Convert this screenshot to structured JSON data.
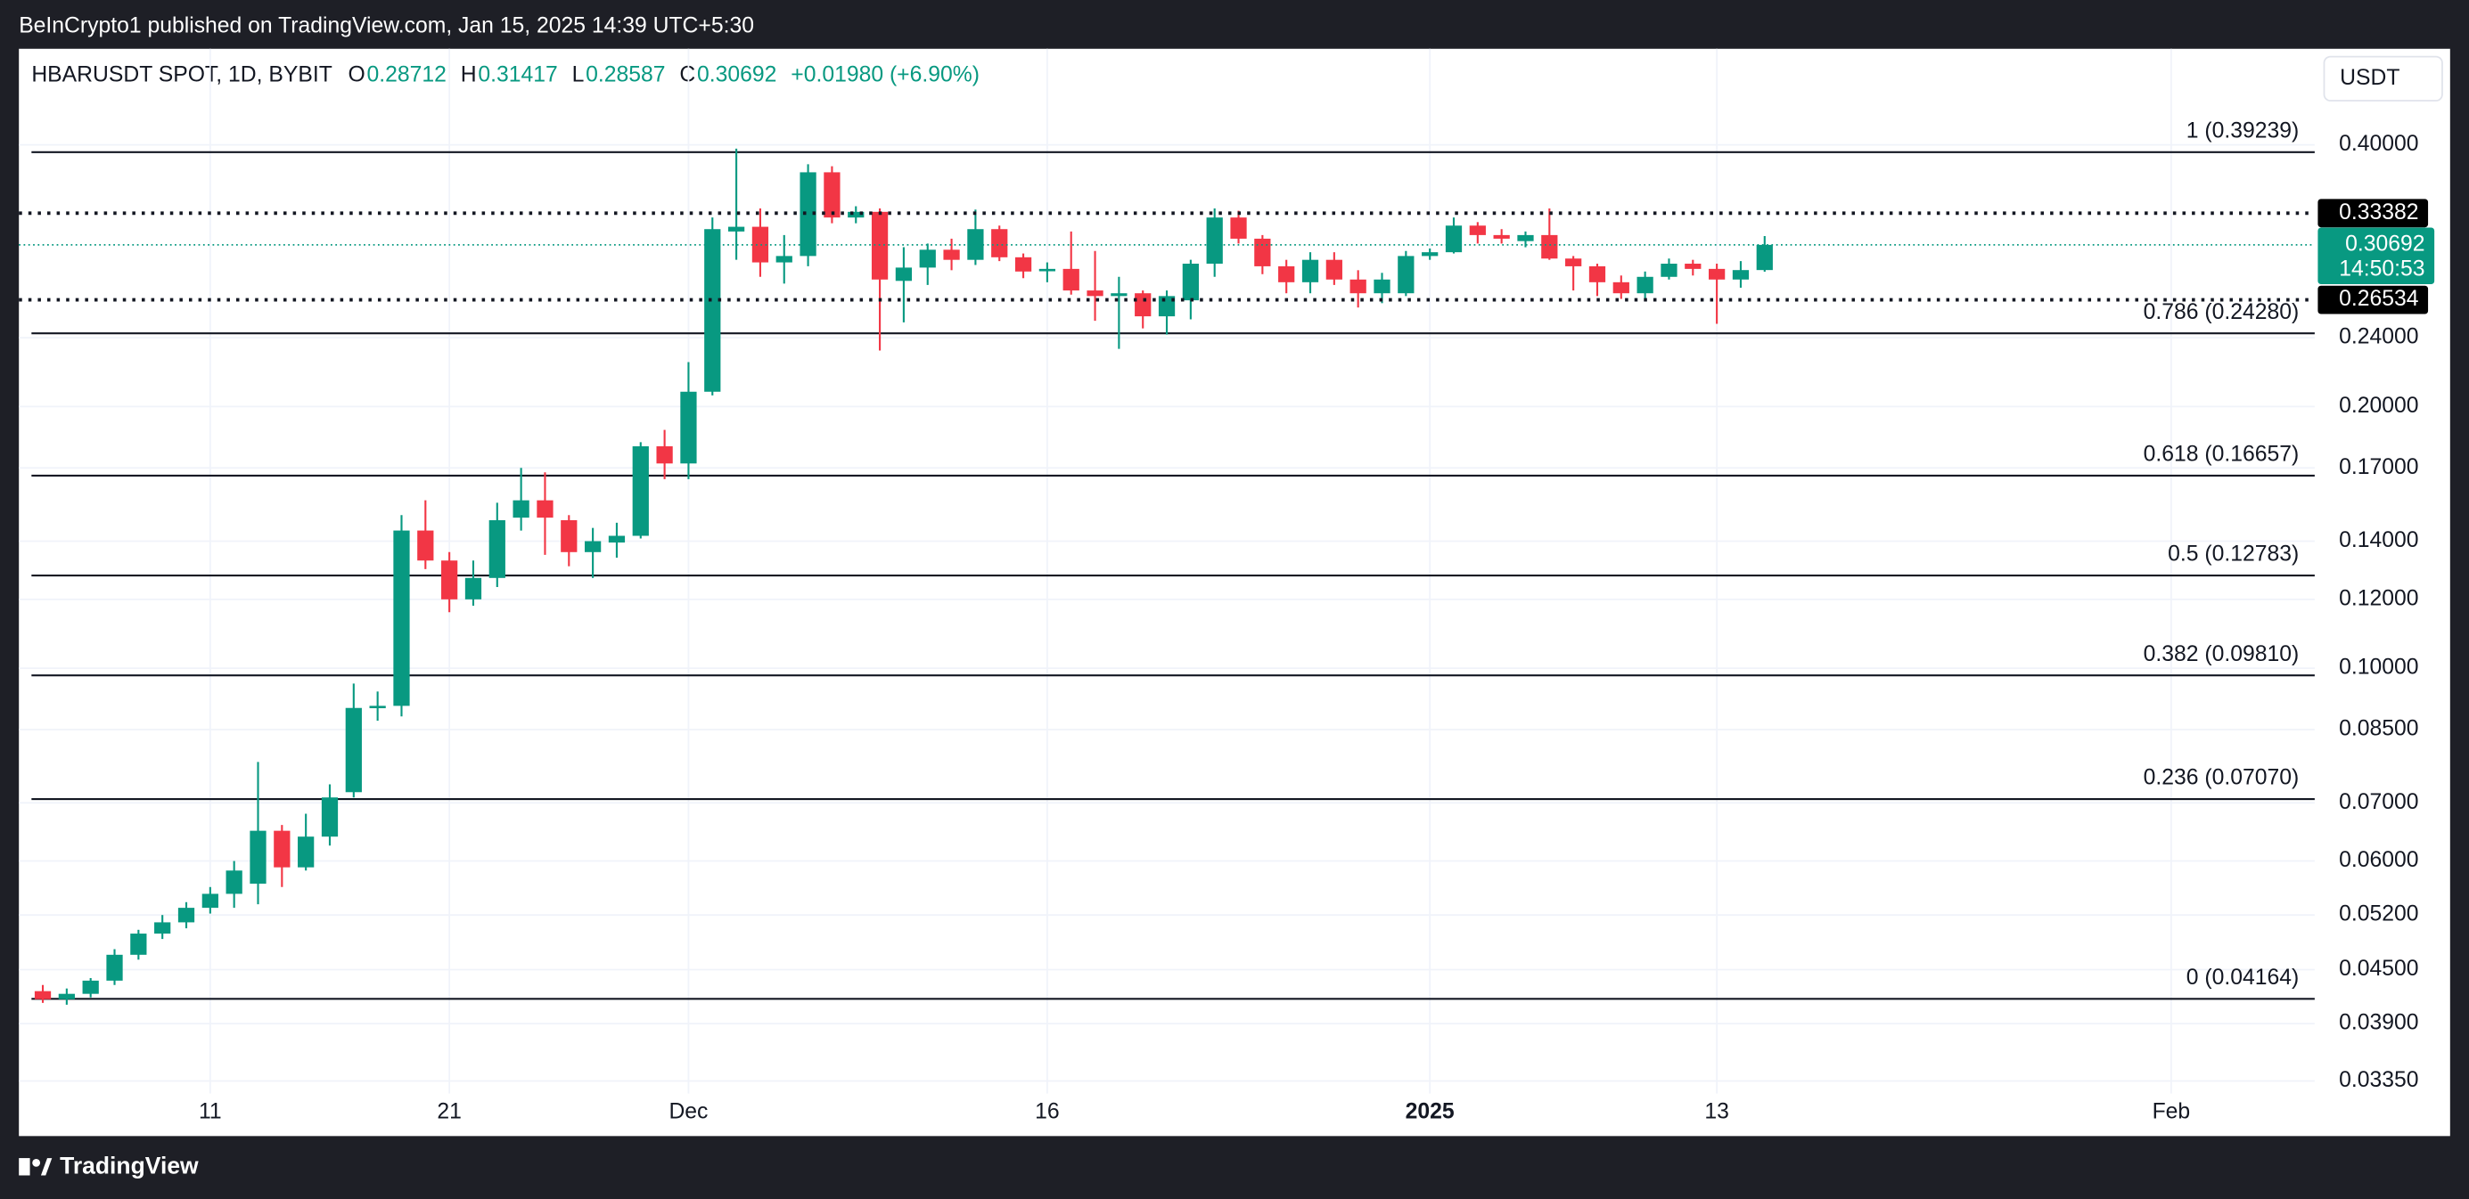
{
  "publisher": "BeInCrypto1 published on TradingView.com, Jan 15, 2025 14:39 UTC+5:30",
  "brand": "TradingView",
  "chart_data": {
    "type": "candlestick",
    "symbol": "HBARUSDT SPOT, 1D, BYBIT",
    "ohlc_letters": [
      "O",
      "H",
      "L",
      "C"
    ],
    "change": "+0.01980 (+6.90%)",
    "currency": "USDT",
    "up_color": "#089981",
    "down_color": "#f23645",
    "log_scale": true,
    "grid": true,
    "x": [
      "2024-11-04",
      "2024-11-05",
      "2024-11-06",
      "2024-11-07",
      "2024-11-08",
      "2024-11-09",
      "2024-11-10",
      "2024-11-11",
      "2024-11-12",
      "2024-11-13",
      "2024-11-14",
      "2024-11-15",
      "2024-11-16",
      "2024-11-17",
      "2024-11-18",
      "2024-11-19",
      "2024-11-20",
      "2024-11-21",
      "2024-11-22",
      "2024-11-23",
      "2024-11-24",
      "2024-11-25",
      "2024-11-26",
      "2024-11-27",
      "2024-11-28",
      "2024-11-29",
      "2024-11-30",
      "2024-12-01",
      "2024-12-02",
      "2024-12-03",
      "2024-12-04",
      "2024-12-05",
      "2024-12-06",
      "2024-12-07",
      "2024-12-08",
      "2024-12-09",
      "2024-12-10",
      "2024-12-11",
      "2024-12-12",
      "2024-12-13",
      "2024-12-14",
      "2024-12-15",
      "2024-12-16",
      "2024-12-17",
      "2024-12-18",
      "2024-12-19",
      "2024-12-20",
      "2024-12-21",
      "2024-12-22",
      "2024-12-23",
      "2024-12-24",
      "2024-12-25",
      "2024-12-26",
      "2024-12-27",
      "2024-12-28",
      "2024-12-29",
      "2024-12-30",
      "2024-12-31",
      "2025-01-01",
      "2025-01-02",
      "2025-01-03",
      "2025-01-04",
      "2025-01-05",
      "2025-01-06",
      "2025-01-07",
      "2025-01-08",
      "2025-01-09",
      "2025-01-10",
      "2025-01-11",
      "2025-01-12",
      "2025-01-13",
      "2025-01-14",
      "2025-01-15"
    ],
    "open": [
      0.0425,
      0.0416,
      0.0422,
      0.0437,
      0.0468,
      0.0495,
      0.051,
      0.053,
      0.055,
      0.0565,
      0.065,
      0.059,
      0.064,
      0.072,
      0.09,
      0.0905,
      0.144,
      0.133,
      0.12,
      0.127,
      0.149,
      0.156,
      0.148,
      0.136,
      0.1395,
      0.142,
      0.18,
      0.172,
      0.208,
      0.318,
      0.322,
      0.293,
      0.298,
      0.372,
      0.33,
      0.335,
      0.279,
      0.289,
      0.303,
      0.295,
      0.32,
      0.297,
      0.287,
      0.288,
      0.272,
      0.268,
      0.27,
      0.254,
      0.265,
      0.292,
      0.33,
      0.312,
      0.29,
      0.278,
      0.295,
      0.28,
      0.27,
      0.27,
      0.298,
      0.301,
      0.323,
      0.315,
      0.31,
      0.315,
      0.296,
      0.29,
      0.278,
      0.27,
      0.282,
      0.292,
      0.288,
      0.28,
      0.28712
    ],
    "high": [
      0.0432,
      0.0428,
      0.044,
      0.0475,
      0.05,
      0.052,
      0.0538,
      0.056,
      0.06,
      0.078,
      0.066,
      0.068,
      0.0735,
      0.096,
      0.094,
      0.15,
      0.156,
      0.136,
      0.133,
      0.155,
      0.17,
      0.168,
      0.15,
      0.145,
      0.147,
      0.182,
      0.188,
      0.225,
      0.33,
      0.396,
      0.338,
      0.315,
      0.38,
      0.378,
      0.34,
      0.338,
      0.305,
      0.308,
      0.312,
      0.337,
      0.323,
      0.3,
      0.293,
      0.318,
      0.302,
      0.282,
      0.272,
      0.272,
      0.295,
      0.338,
      0.336,
      0.315,
      0.295,
      0.301,
      0.301,
      0.287,
      0.285,
      0.302,
      0.304,
      0.33,
      0.326,
      0.32,
      0.318,
      0.338,
      0.298,
      0.292,
      0.283,
      0.286,
      0.296,
      0.295,
      0.292,
      0.294,
      0.31417
    ],
    "low": [
      0.0412,
      0.041,
      0.0418,
      0.0432,
      0.0462,
      0.0488,
      0.0502,
      0.0522,
      0.053,
      0.0535,
      0.056,
      0.0585,
      0.0625,
      0.071,
      0.087,
      0.088,
      0.13,
      0.116,
      0.118,
      0.124,
      0.144,
      0.135,
      0.131,
      0.127,
      0.134,
      0.141,
      0.165,
      0.165,
      0.206,
      0.295,
      0.282,
      0.277,
      0.29,
      0.325,
      0.325,
      0.232,
      0.25,
      0.276,
      0.287,
      0.291,
      0.294,
      0.281,
      0.278,
      0.269,
      0.251,
      0.233,
      0.246,
      0.242,
      0.252,
      0.282,
      0.308,
      0.284,
      0.27,
      0.27,
      0.276,
      0.26,
      0.263,
      0.268,
      0.295,
      0.3,
      0.308,
      0.308,
      0.305,
      0.295,
      0.272,
      0.268,
      0.266,
      0.265,
      0.28,
      0.283,
      0.249,
      0.274,
      0.28587
    ],
    "close": [
      0.0416,
      0.0422,
      0.0437,
      0.0468,
      0.0495,
      0.051,
      0.053,
      0.055,
      0.0585,
      0.065,
      0.059,
      0.064,
      0.071,
      0.09,
      0.0905,
      0.144,
      0.133,
      0.12,
      0.127,
      0.148,
      0.156,
      0.149,
      0.136,
      0.14,
      0.142,
      0.18,
      0.172,
      0.208,
      0.32,
      0.322,
      0.293,
      0.298,
      0.372,
      0.33,
      0.335,
      0.28,
      0.289,
      0.303,
      0.295,
      0.32,
      0.297,
      0.286,
      0.288,
      0.272,
      0.268,
      0.27,
      0.254,
      0.268,
      0.292,
      0.33,
      0.312,
      0.29,
      0.278,
      0.295,
      0.28,
      0.27,
      0.28,
      0.298,
      0.301,
      0.323,
      0.315,
      0.312,
      0.315,
      0.296,
      0.29,
      0.278,
      0.27,
      0.282,
      0.292,
      0.288,
      0.28,
      0.2871,
      0.30692
    ],
    "xlim": [
      "2024-11-03",
      "2025-02-07"
    ],
    "xticks": [
      {
        "value": "2024-11-11",
        "label": "11"
      },
      {
        "value": "2024-11-21",
        "label": "21"
      },
      {
        "value": "2024-12-01",
        "label": "Dec"
      },
      {
        "value": "2024-12-16",
        "label": "16"
      },
      {
        "value": "2025-01-01",
        "label": "2025"
      },
      {
        "value": "2025-01-13",
        "label": "13"
      },
      {
        "value": "2025-02-01",
        "label": "Feb"
      }
    ],
    "ylim": [
      0.0324,
      0.516
    ],
    "yticks": [
      {
        "value": 0.4,
        "label": "0.40000"
      },
      {
        "value": 0.24,
        "label": "0.24000"
      },
      {
        "value": 0.2,
        "label": "0.20000"
      },
      {
        "value": 0.17,
        "label": "0.17000"
      },
      {
        "value": 0.14,
        "label": "0.14000"
      },
      {
        "value": 0.12,
        "label": "0.12000"
      },
      {
        "value": 0.1,
        "label": "0.10000"
      },
      {
        "value": 0.085,
        "label": "0.08500"
      },
      {
        "value": 0.07,
        "label": "0.07000"
      },
      {
        "value": 0.06,
        "label": "0.06000"
      },
      {
        "value": 0.052,
        "label": "0.05200"
      },
      {
        "value": 0.045,
        "label": "0.04500"
      },
      {
        "value": 0.039,
        "label": "0.03900"
      },
      {
        "value": 0.0335,
        "label": "0.03350"
      }
    ],
    "fib_levels": [
      {
        "value": 0.39239,
        "label": "1 (0.39239)"
      },
      {
        "value": 0.2428,
        "label": "0.786 (0.24280)"
      },
      {
        "value": 0.16657,
        "label": "0.618 (0.16657)"
      },
      {
        "value": 0.12783,
        "label": "0.5 (0.12783)"
      },
      {
        "value": 0.0981,
        "label": "0.382 (0.09810)"
      },
      {
        "value": 0.0707,
        "label": "0.236 (0.07070)"
      },
      {
        "value": 0.04164,
        "label": "0 (0.04164)"
      }
    ],
    "dotted_levels": [
      {
        "value": 0.33382,
        "label": "0.33382"
      },
      {
        "value": 0.26534,
        "label": "0.26534"
      }
    ],
    "last_price": {
      "value": 0.30692,
      "label": "0.30692",
      "countdown": "14:50:53"
    }
  }
}
